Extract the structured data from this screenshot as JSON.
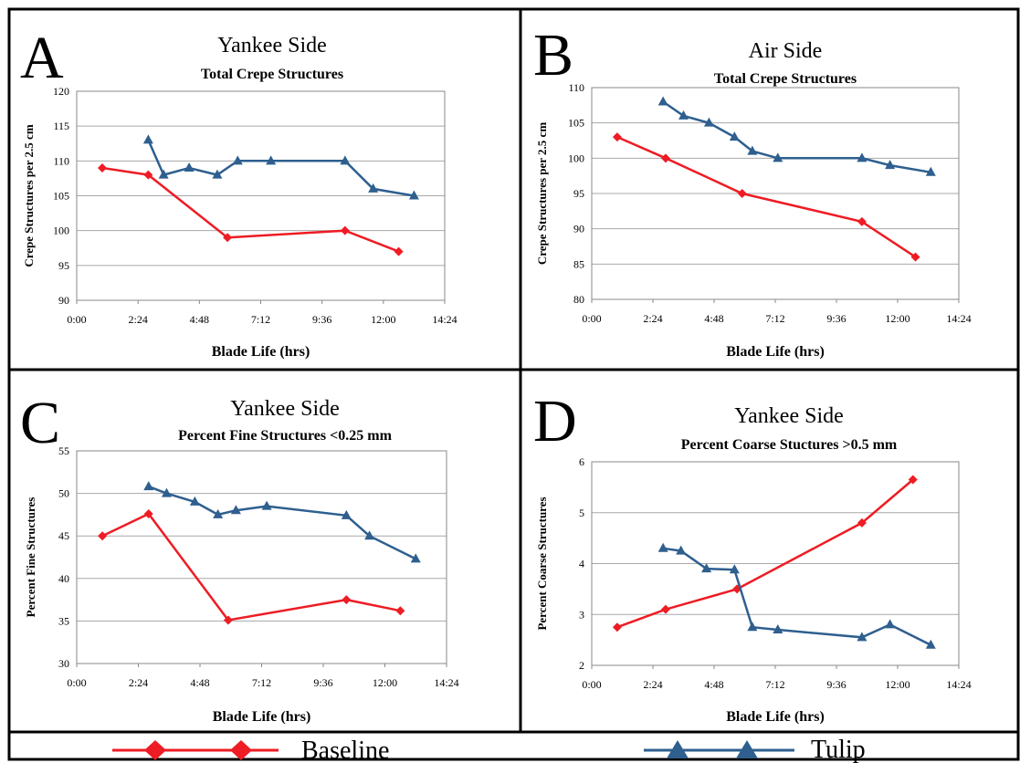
{
  "legend": {
    "baseline": {
      "label": "Baseline",
      "color": "#ee1c24",
      "marker": "diamond"
    },
    "tulip": {
      "label": "Tulip",
      "color": "#2e5f8f",
      "marker": "triangle"
    }
  },
  "chart_data": [
    {
      "type": "line",
      "panel_letter": "A",
      "title": "Yankee Side",
      "subtitle": "Total Crepe Structures",
      "xlabel": "Blade Life (hrs)",
      "ylabel": "Crepe Structures per 2.5 cm",
      "xlim_hours": [
        0,
        14.4
      ],
      "x_ticks": [
        "0:00",
        "2:24",
        "4:48",
        "7:12",
        "9:36",
        "12:00",
        "14:24"
      ],
      "ylim": [
        90,
        120
      ],
      "y_ticks": [
        90,
        95,
        100,
        105,
        110,
        115,
        120
      ],
      "grid": true,
      "series": [
        {
          "name": "Baseline",
          "x_hours": [
            1.0,
            2.8,
            5.9,
            10.5,
            12.6
          ],
          "y": [
            109,
            108,
            99,
            100,
            97
          ]
        },
        {
          "name": "Tulip",
          "x_hours": [
            2.8,
            3.4,
            4.4,
            5.5,
            6.3,
            7.6,
            10.5,
            11.6,
            13.2
          ],
          "y": [
            113,
            108,
            109,
            108,
            110,
            110,
            110,
            106,
            105
          ]
        }
      ]
    },
    {
      "type": "line",
      "panel_letter": "B",
      "title": "Air Side",
      "subtitle": "Total Crepe Structures",
      "xlabel": "Blade Life (hrs)",
      "ylabel": "Crepe Structures per 2.5 cm",
      "xlim_hours": [
        0,
        14.4
      ],
      "x_ticks": [
        "0:00",
        "2:24",
        "4:48",
        "7:12",
        "9:36",
        "12:00",
        "14:24"
      ],
      "ylim": [
        80,
        110
      ],
      "y_ticks": [
        80,
        85,
        90,
        95,
        100,
        105,
        110
      ],
      "grid": true,
      "series": [
        {
          "name": "Baseline",
          "x_hours": [
            1.0,
            2.9,
            5.9,
            10.6,
            12.7
          ],
          "y": [
            103,
            100,
            95,
            91,
            86
          ]
        },
        {
          "name": "Tulip",
          "x_hours": [
            2.8,
            3.6,
            4.6,
            5.6,
            6.3,
            7.3,
            10.6,
            11.7,
            13.3
          ],
          "y": [
            108,
            106,
            105,
            103,
            101,
            100,
            100,
            99,
            98
          ]
        }
      ]
    },
    {
      "type": "line",
      "panel_letter": "C",
      "title": "Yankee Side",
      "subtitle": "Percent Fine Structures <0.25 mm",
      "xlabel": "Blade Life (hrs)",
      "ylabel": "Percent Fine Structures",
      "xlim_hours": [
        0,
        14.4
      ],
      "x_ticks": [
        "0:00",
        "2:24",
        "4:48",
        "7:12",
        "9:36",
        "12:00",
        "14:24"
      ],
      "ylim": [
        30,
        55
      ],
      "y_ticks": [
        30,
        35,
        40,
        45,
        50,
        55
      ],
      "grid": true,
      "series": [
        {
          "name": "Baseline",
          "x_hours": [
            1.0,
            2.8,
            5.9,
            10.5,
            12.6
          ],
          "y": [
            45,
            47.6,
            35.1,
            37.5,
            36.2
          ]
        },
        {
          "name": "Tulip",
          "x_hours": [
            2.8,
            3.5,
            4.6,
            5.5,
            6.2,
            7.4,
            10.5,
            11.4,
            13.2
          ],
          "y": [
            50.8,
            50,
            49,
            47.5,
            48,
            48.5,
            47.4,
            45,
            42.3
          ]
        }
      ]
    },
    {
      "type": "line",
      "panel_letter": "D",
      "title": "Yankee Side",
      "subtitle": "Percent Coarse Stuctures >0.5 mm",
      "xlabel": "Blade Life (hrs)",
      "ylabel": "Percent Coarse Structures",
      "xlim_hours": [
        0,
        14.4
      ],
      "x_ticks": [
        "0:00",
        "2:24",
        "4:48",
        "7:12",
        "9:36",
        "12:00",
        "14:24"
      ],
      "ylim": [
        2,
        6
      ],
      "y_ticks": [
        2,
        3,
        4,
        5,
        6
      ],
      "grid": true,
      "series": [
        {
          "name": "Baseline",
          "x_hours": [
            1.0,
            2.9,
            5.7,
            10.6,
            12.6
          ],
          "y": [
            2.75,
            3.1,
            3.5,
            4.8,
            5.65
          ]
        },
        {
          "name": "Tulip",
          "x_hours": [
            2.8,
            3.5,
            4.5,
            5.6,
            6.3,
            7.3,
            10.6,
            11.7,
            13.3
          ],
          "y": [
            4.3,
            4.25,
            3.9,
            3.88,
            2.75,
            2.7,
            2.55,
            2.8,
            2.4
          ]
        }
      ]
    }
  ]
}
